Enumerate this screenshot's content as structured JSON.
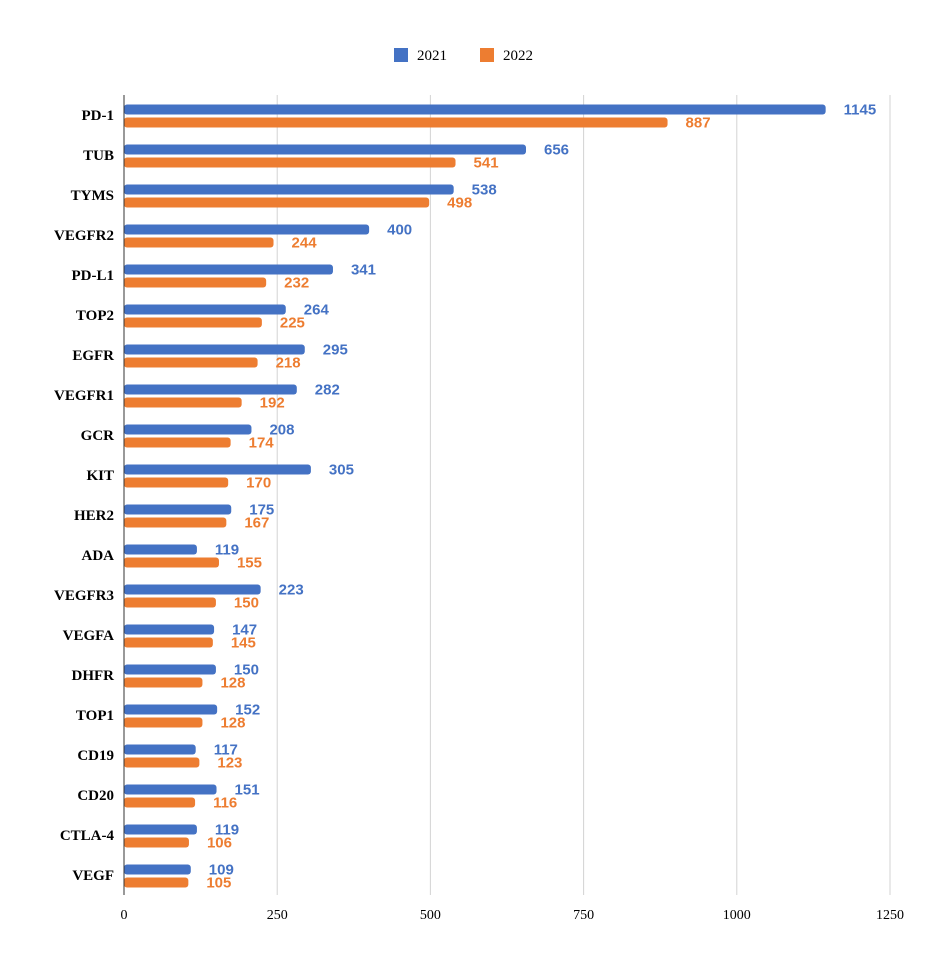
{
  "chart_data": {
    "type": "bar",
    "orientation": "horizontal",
    "categories": [
      "PD-1",
      "TUB",
      "TYMS",
      "VEGFR2",
      "PD-L1",
      "TOP2",
      "EGFR",
      "VEGFR1",
      "GCR",
      "KIT",
      "HER2",
      "ADA",
      "VEGFR3",
      "VEGFA",
      "DHFR",
      "TOP1",
      "CD19",
      "CD20",
      "CTLA-4",
      "VEGF"
    ],
    "series": [
      {
        "name": "2021",
        "color": "#4472C4",
        "values": [
          1145,
          656,
          538,
          400,
          341,
          264,
          295,
          282,
          208,
          305,
          175,
          119,
          223,
          147,
          150,
          152,
          117,
          151,
          119,
          109
        ]
      },
      {
        "name": "2022",
        "color": "#ED7D31",
        "values": [
          887,
          541,
          498,
          244,
          232,
          225,
          218,
          192,
          174,
          170,
          167,
          155,
          150,
          145,
          128,
          128,
          123,
          116,
          106,
          105
        ]
      }
    ],
    "xlim": [
      0,
      1250
    ],
    "xticks": [
      "0",
      "250",
      "500",
      "750",
      "1000",
      "1250"
    ],
    "grid": "vertical",
    "legend": "top-center",
    "data_labels": true
  }
}
